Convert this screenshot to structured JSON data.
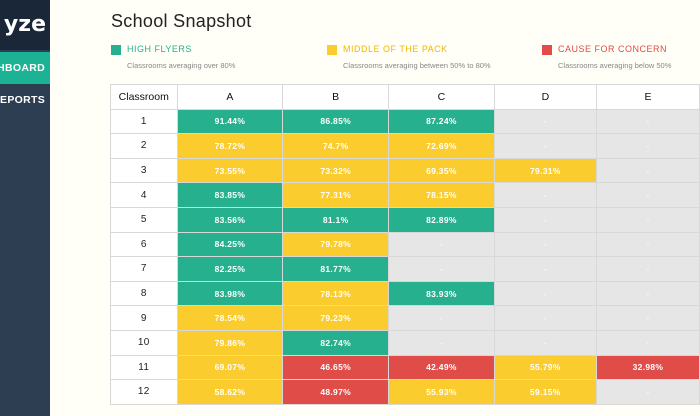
{
  "sidebar": {
    "brand": "yze",
    "items": [
      {
        "label": "SHBOARD",
        "active": true
      },
      {
        "label": "REPORTS",
        "active": false
      }
    ]
  },
  "page": {
    "title": "School Snapshot"
  },
  "legend": [
    {
      "key": "high",
      "label": "HIGH FLYERS",
      "description": "Classrooms averaging over 80%",
      "color": "#27b08d"
    },
    {
      "key": "mid",
      "label": "MIDDLE OF THE PACK",
      "description": "Classrooms averaging between 50% to 80%",
      "color": "#fbcc2d"
    },
    {
      "key": "low",
      "label": "CAUSE FOR CONCERN",
      "description": "Classrooms averaging below 50%",
      "color": "#e04c47"
    }
  ],
  "table": {
    "headers": [
      "Classroom",
      "A",
      "B",
      "C",
      "D",
      "E"
    ],
    "rows": [
      {
        "room": "1",
        "cells": [
          {
            "v": "91.44%",
            "s": "good"
          },
          {
            "v": "86.85%",
            "s": "good"
          },
          {
            "v": "87.24%",
            "s": "good"
          },
          {
            "v": "-",
            "s": "none"
          },
          {
            "v": "-",
            "s": "none"
          }
        ]
      },
      {
        "room": "2",
        "cells": [
          {
            "v": "78.72%",
            "s": "mid"
          },
          {
            "v": "74.7%",
            "s": "mid"
          },
          {
            "v": "72.69%",
            "s": "mid"
          },
          {
            "v": "-",
            "s": "none"
          },
          {
            "v": "-",
            "s": "none"
          }
        ]
      },
      {
        "room": "3",
        "cells": [
          {
            "v": "73.55%",
            "s": "mid"
          },
          {
            "v": "73.32%",
            "s": "mid"
          },
          {
            "v": "69.35%",
            "s": "mid"
          },
          {
            "v": "79.31%",
            "s": "mid"
          },
          {
            "v": "-",
            "s": "none"
          }
        ]
      },
      {
        "room": "4",
        "cells": [
          {
            "v": "83.85%",
            "s": "good"
          },
          {
            "v": "77.31%",
            "s": "mid"
          },
          {
            "v": "78.15%",
            "s": "mid"
          },
          {
            "v": "-",
            "s": "none"
          },
          {
            "v": "-",
            "s": "none"
          }
        ]
      },
      {
        "room": "5",
        "cells": [
          {
            "v": "83.56%",
            "s": "good"
          },
          {
            "v": "81.1%",
            "s": "good"
          },
          {
            "v": "82.89%",
            "s": "good"
          },
          {
            "v": "-",
            "s": "none"
          },
          {
            "v": "-",
            "s": "none"
          }
        ]
      },
      {
        "room": "6",
        "cells": [
          {
            "v": "84.25%",
            "s": "good"
          },
          {
            "v": "79.78%",
            "s": "mid"
          },
          {
            "v": "-",
            "s": "none"
          },
          {
            "v": "-",
            "s": "none"
          },
          {
            "v": "-",
            "s": "none"
          }
        ]
      },
      {
        "room": "7",
        "cells": [
          {
            "v": "82.25%",
            "s": "good"
          },
          {
            "v": "81.77%",
            "s": "good"
          },
          {
            "v": "-",
            "s": "none"
          },
          {
            "v": "-",
            "s": "none"
          },
          {
            "v": "-",
            "s": "none"
          }
        ]
      },
      {
        "room": "8",
        "cells": [
          {
            "v": "83.98%",
            "s": "good"
          },
          {
            "v": "78.13%",
            "s": "mid"
          },
          {
            "v": "83.93%",
            "s": "good"
          },
          {
            "v": "-",
            "s": "none"
          },
          {
            "v": "-",
            "s": "none"
          }
        ]
      },
      {
        "room": "9",
        "cells": [
          {
            "v": "78.54%",
            "s": "mid"
          },
          {
            "v": "79.23%",
            "s": "mid"
          },
          {
            "v": "-",
            "s": "none"
          },
          {
            "v": "-",
            "s": "none"
          },
          {
            "v": "-",
            "s": "none"
          }
        ]
      },
      {
        "room": "10",
        "cells": [
          {
            "v": "79.86%",
            "s": "mid"
          },
          {
            "v": "82.74%",
            "s": "good"
          },
          {
            "v": "-",
            "s": "none"
          },
          {
            "v": "-",
            "s": "none"
          },
          {
            "v": "-",
            "s": "none"
          }
        ]
      },
      {
        "room": "11",
        "cells": [
          {
            "v": "69.07%",
            "s": "mid"
          },
          {
            "v": "46.65%",
            "s": "bad"
          },
          {
            "v": "42.49%",
            "s": "bad"
          },
          {
            "v": "55.79%",
            "s": "mid"
          },
          {
            "v": "32.98%",
            "s": "bad"
          }
        ]
      },
      {
        "room": "12",
        "cells": [
          {
            "v": "58.62%",
            "s": "mid"
          },
          {
            "v": "48.97%",
            "s": "bad"
          },
          {
            "v": "55.93%",
            "s": "mid"
          },
          {
            "v": "59.15%",
            "s": "mid"
          },
          {
            "v": "-",
            "s": "none"
          }
        ]
      }
    ]
  }
}
